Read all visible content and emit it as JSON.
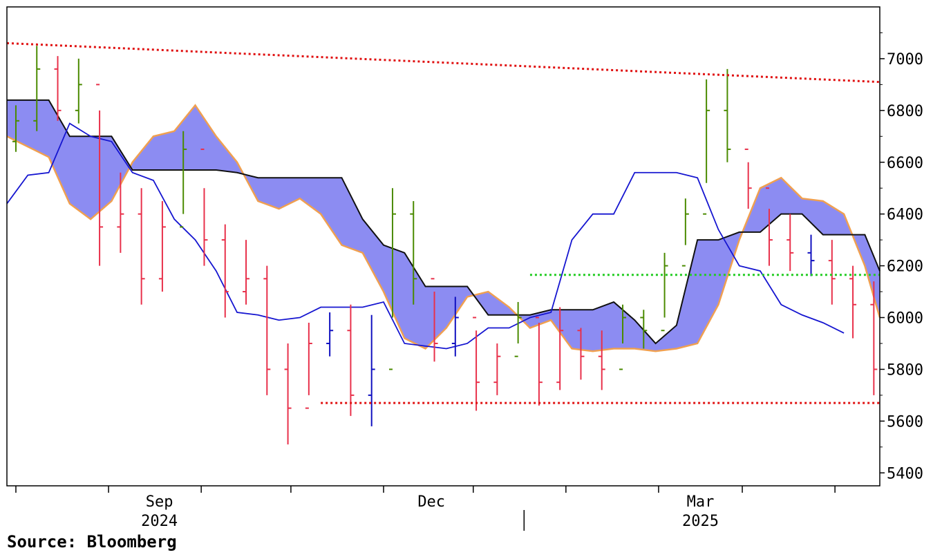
{
  "source": "Source: Bloomberg",
  "chart_data": {
    "type": "line",
    "subtype": "ohlc-bars with ichimoku cloud",
    "title": "",
    "xlabel": "",
    "ylabel": "",
    "ylim": [
      5350,
      7200
    ],
    "y_ticks": [
      5400,
      5600,
      5800,
      6000,
      6200,
      6400,
      6600,
      6800,
      7000
    ],
    "y_tick_labels": [
      "5400",
      "5600",
      "5800",
      "6000",
      "6200",
      "6400",
      "6600",
      "6800",
      "7000"
    ],
    "x_tick_labels": [
      {
        "label": "Sep",
        "x": "2024-09-01"
      },
      {
        "label": "Dec",
        "x": "2024-12-01"
      },
      {
        "label": "Mar",
        "x": "2025-03-01"
      }
    ],
    "x_year_labels": [
      {
        "label": "2024",
        "x": "2024-09-01"
      },
      {
        "label": "2025",
        "x": "2025-03-01"
      }
    ],
    "year_divider": "2025-01-01",
    "xlim": [
      "2024-07-12",
      "2025-04-30"
    ],
    "grid": false,
    "colors": {
      "up_bar": "#4a8a00",
      "down_bar": "#e8304a",
      "neutral_bar": "#1010c0",
      "cloud_fill": "#8c8cf2",
      "span_a": "#f0a050",
      "span_b": "#101010",
      "base_line": "#1515d0",
      "resistance": "#e01010",
      "support": "#e01010",
      "mid_level": "#22cc22"
    },
    "price_bars": [
      {
        "x": "2024-07-15",
        "o": 6680,
        "h": 6820,
        "l": 6640,
        "c": 6760,
        "d": "u"
      },
      {
        "x": "2024-07-22",
        "o": 6760,
        "h": 7050,
        "l": 6720,
        "c": 6960,
        "d": "u"
      },
      {
        "x": "2024-07-29",
        "o": 6960,
        "h": 7010,
        "l": 6760,
        "c": 6800,
        "d": "d"
      },
      {
        "x": "2024-08-05",
        "o": 6800,
        "h": 7000,
        "l": 6750,
        "c": 6900,
        "d": "u"
      },
      {
        "x": "2024-08-12",
        "o": 6900,
        "h": 6800,
        "l": 6200,
        "c": 6350,
        "d": "d"
      },
      {
        "x": "2024-08-19",
        "o": 6350,
        "h": 6560,
        "l": 6250,
        "c": 6400,
        "d": "d"
      },
      {
        "x": "2024-08-26",
        "o": 6400,
        "h": 6500,
        "l": 6050,
        "c": 6150,
        "d": "d"
      },
      {
        "x": "2024-09-02",
        "o": 6150,
        "h": 6450,
        "l": 6100,
        "c": 6350,
        "d": "d"
      },
      {
        "x": "2024-09-09",
        "o": 6350,
        "h": 6720,
        "l": 6400,
        "c": 6650,
        "d": "u"
      },
      {
        "x": "2024-09-16",
        "o": 6650,
        "h": 6500,
        "l": 6200,
        "c": 6300,
        "d": "d"
      },
      {
        "x": "2024-09-23",
        "o": 6300,
        "h": 6360,
        "l": 6000,
        "c": 6100,
        "d": "d"
      },
      {
        "x": "2024-09-30",
        "o": 6100,
        "h": 6300,
        "l": 6050,
        "c": 6150,
        "d": "d"
      },
      {
        "x": "2024-10-07",
        "o": 6150,
        "h": 6200,
        "l": 5700,
        "c": 5800,
        "d": "d"
      },
      {
        "x": "2024-10-14",
        "o": 5800,
        "h": 5900,
        "l": 5510,
        "c": 5650,
        "d": "d"
      },
      {
        "x": "2024-10-21",
        "o": 5650,
        "h": 5980,
        "l": 5700,
        "c": 5900,
        "d": "d"
      },
      {
        "x": "2024-10-28",
        "o": 5900,
        "h": 6020,
        "l": 5850,
        "c": 5950,
        "d": "n"
      },
      {
        "x": "2024-11-04",
        "o": 5950,
        "h": 6050,
        "l": 5620,
        "c": 5700,
        "d": "d"
      },
      {
        "x": "2024-11-11",
        "o": 5700,
        "h": 6010,
        "l": 5580,
        "c": 5800,
        "d": "n"
      },
      {
        "x": "2024-11-18",
        "o": 5800,
        "h": 6500,
        "l": 6000,
        "c": 6400,
        "d": "u"
      },
      {
        "x": "2024-11-25",
        "o": 6400,
        "h": 6450,
        "l": 6050,
        "c": 6150,
        "d": "u"
      },
      {
        "x": "2024-12-02",
        "o": 6150,
        "h": 6100,
        "l": 5830,
        "c": 5900,
        "d": "d"
      },
      {
        "x": "2024-12-09",
        "o": 5900,
        "h": 6080,
        "l": 5850,
        "c": 6000,
        "d": "n"
      },
      {
        "x": "2024-12-16",
        "o": 6000,
        "h": 5950,
        "l": 5640,
        "c": 5750,
        "d": "d"
      },
      {
        "x": "2024-12-23",
        "o": 5750,
        "h": 5900,
        "l": 5700,
        "c": 5850,
        "d": "d"
      },
      {
        "x": "2024-12-30",
        "o": 5850,
        "h": 6060,
        "l": 5900,
        "c": 6000,
        "d": "u"
      },
      {
        "x": "2025-01-06",
        "o": 6000,
        "h": 5980,
        "l": 5660,
        "c": 5750,
        "d": "d"
      },
      {
        "x": "2025-01-13",
        "o": 5750,
        "h": 6040,
        "l": 5720,
        "c": 5950,
        "d": "d"
      },
      {
        "x": "2025-01-20",
        "o": 5950,
        "h": 5960,
        "l": 5760,
        "c": 5850,
        "d": "d"
      },
      {
        "x": "2025-01-27",
        "o": 5850,
        "h": 5950,
        "l": 5720,
        "c": 5800,
        "d": "d"
      },
      {
        "x": "2025-02-03",
        "o": 5800,
        "h": 6050,
        "l": 5900,
        "c": 6000,
        "d": "u"
      },
      {
        "x": "2025-02-10",
        "o": 6000,
        "h": 6030,
        "l": 5880,
        "c": 5950,
        "d": "u"
      },
      {
        "x": "2025-02-17",
        "o": 5950,
        "h": 6250,
        "l": 6000,
        "c": 6200,
        "d": "u"
      },
      {
        "x": "2025-02-24",
        "o": 6200,
        "h": 6460,
        "l": 6280,
        "c": 6400,
        "d": "u"
      },
      {
        "x": "2025-03-03",
        "o": 6400,
        "h": 6920,
        "l": 6520,
        "c": 6800,
        "d": "u"
      },
      {
        "x": "2025-03-10",
        "o": 6800,
        "h": 6960,
        "l": 6600,
        "c": 6650,
        "d": "u"
      },
      {
        "x": "2025-03-17",
        "o": 6650,
        "h": 6600,
        "l": 6420,
        "c": 6500,
        "d": "d"
      },
      {
        "x": "2025-03-24",
        "o": 6500,
        "h": 6420,
        "l": 6200,
        "c": 6300,
        "d": "d"
      },
      {
        "x": "2025-03-31",
        "o": 6300,
        "h": 6400,
        "l": 6180,
        "c": 6250,
        "d": "d"
      },
      {
        "x": "2025-04-07",
        "o": 6250,
        "h": 6320,
        "l": 6160,
        "c": 6220,
        "d": "n"
      },
      {
        "x": "2025-04-14",
        "o": 6220,
        "h": 6300,
        "l": 6050,
        "c": 6150,
        "d": "d"
      },
      {
        "x": "2025-04-21",
        "o": 6150,
        "h": 6200,
        "l": 5920,
        "c": 6050,
        "d": "d"
      },
      {
        "x": "2025-04-28",
        "o": 6050,
        "h": 6140,
        "l": 5700,
        "c": 5800,
        "d": "d"
      }
    ],
    "span_a": [
      {
        "x": "2024-07-12",
        "y": 6700
      },
      {
        "x": "2024-07-26",
        "y": 6620
      },
      {
        "x": "2024-08-02",
        "y": 6440
      },
      {
        "x": "2024-08-09",
        "y": 6380
      },
      {
        "x": "2024-08-16",
        "y": 6450
      },
      {
        "x": "2024-08-23",
        "y": 6600
      },
      {
        "x": "2024-08-30",
        "y": 6700
      },
      {
        "x": "2024-09-06",
        "y": 6720
      },
      {
        "x": "2024-09-13",
        "y": 6820
      },
      {
        "x": "2024-09-20",
        "y": 6700
      },
      {
        "x": "2024-09-27",
        "y": 6600
      },
      {
        "x": "2024-10-04",
        "y": 6450
      },
      {
        "x": "2024-10-11",
        "y": 6420
      },
      {
        "x": "2024-10-18",
        "y": 6460
      },
      {
        "x": "2024-10-25",
        "y": 6400
      },
      {
        "x": "2024-11-01",
        "y": 6280
      },
      {
        "x": "2024-11-08",
        "y": 6250
      },
      {
        "x": "2024-11-15",
        "y": 6100
      },
      {
        "x": "2024-11-22",
        "y": 5920
      },
      {
        "x": "2024-11-29",
        "y": 5880
      },
      {
        "x": "2024-12-06",
        "y": 5960
      },
      {
        "x": "2024-12-13",
        "y": 6080
      },
      {
        "x": "2024-12-20",
        "y": 6100
      },
      {
        "x": "2024-12-27",
        "y": 6040
      },
      {
        "x": "2025-01-03",
        "y": 5960
      },
      {
        "x": "2025-01-10",
        "y": 5990
      },
      {
        "x": "2025-01-17",
        "y": 5880
      },
      {
        "x": "2025-01-24",
        "y": 5870
      },
      {
        "x": "2025-01-31",
        "y": 5880
      },
      {
        "x": "2025-02-07",
        "y": 5880
      },
      {
        "x": "2025-02-14",
        "y": 5870
      },
      {
        "x": "2025-02-21",
        "y": 5880
      },
      {
        "x": "2025-02-28",
        "y": 5900
      },
      {
        "x": "2025-03-07",
        "y": 6050
      },
      {
        "x": "2025-03-14",
        "y": 6300
      },
      {
        "x": "2025-03-21",
        "y": 6500
      },
      {
        "x": "2025-03-28",
        "y": 6540
      },
      {
        "x": "2025-04-04",
        "y": 6460
      },
      {
        "x": "2025-04-11",
        "y": 6450
      },
      {
        "x": "2025-04-18",
        "y": 6400
      },
      {
        "x": "2025-04-25",
        "y": 6200
      },
      {
        "x": "2025-04-30",
        "y": 6000
      }
    ],
    "span_b": [
      {
        "x": "2024-07-12",
        "y": 6840
      },
      {
        "x": "2024-07-26",
        "y": 6840
      },
      {
        "x": "2024-08-02",
        "y": 6700
      },
      {
        "x": "2024-08-09",
        "y": 6700
      },
      {
        "x": "2024-08-16",
        "y": 6700
      },
      {
        "x": "2024-08-23",
        "y": 6570
      },
      {
        "x": "2024-08-30",
        "y": 6570
      },
      {
        "x": "2024-09-06",
        "y": 6570
      },
      {
        "x": "2024-09-13",
        "y": 6570
      },
      {
        "x": "2024-09-20",
        "y": 6570
      },
      {
        "x": "2024-09-27",
        "y": 6560
      },
      {
        "x": "2024-10-04",
        "y": 6540
      },
      {
        "x": "2024-10-11",
        "y": 6540
      },
      {
        "x": "2024-10-18",
        "y": 6540
      },
      {
        "x": "2024-10-25",
        "y": 6540
      },
      {
        "x": "2024-11-01",
        "y": 6540
      },
      {
        "x": "2024-11-08",
        "y": 6380
      },
      {
        "x": "2024-11-15",
        "y": 6280
      },
      {
        "x": "2024-11-22",
        "y": 6250
      },
      {
        "x": "2024-11-29",
        "y": 6120
      },
      {
        "x": "2024-12-06",
        "y": 6120
      },
      {
        "x": "2024-12-13",
        "y": 6120
      },
      {
        "x": "2024-12-20",
        "y": 6010
      },
      {
        "x": "2024-12-27",
        "y": 6010
      },
      {
        "x": "2025-01-03",
        "y": 6010
      },
      {
        "x": "2025-01-10",
        "y": 6030
      },
      {
        "x": "2025-01-17",
        "y": 6030
      },
      {
        "x": "2025-01-24",
        "y": 6030
      },
      {
        "x": "2025-01-31",
        "y": 6060
      },
      {
        "x": "2025-02-07",
        "y": 5990
      },
      {
        "x": "2025-02-14",
        "y": 5900
      },
      {
        "x": "2025-02-21",
        "y": 5970
      },
      {
        "x": "2025-02-28",
        "y": 6300
      },
      {
        "x": "2025-03-07",
        "y": 6300
      },
      {
        "x": "2025-03-14",
        "y": 6330
      },
      {
        "x": "2025-03-21",
        "y": 6330
      },
      {
        "x": "2025-03-28",
        "y": 6400
      },
      {
        "x": "2025-04-04",
        "y": 6400
      },
      {
        "x": "2025-04-11",
        "y": 6320
      },
      {
        "x": "2025-04-18",
        "y": 6320
      },
      {
        "x": "2025-04-25",
        "y": 6320
      },
      {
        "x": "2025-04-30",
        "y": 6180
      }
    ],
    "base_line": [
      {
        "x": "2024-07-12",
        "y": 6440
      },
      {
        "x": "2024-07-19",
        "y": 6550
      },
      {
        "x": "2024-07-26",
        "y": 6560
      },
      {
        "x": "2024-08-02",
        "y": 6750
      },
      {
        "x": "2024-08-09",
        "y": 6700
      },
      {
        "x": "2024-08-16",
        "y": 6680
      },
      {
        "x": "2024-08-23",
        "y": 6560
      },
      {
        "x": "2024-08-30",
        "y": 6530
      },
      {
        "x": "2024-09-06",
        "y": 6380
      },
      {
        "x": "2024-09-13",
        "y": 6300
      },
      {
        "x": "2024-09-20",
        "y": 6180
      },
      {
        "x": "2024-09-27",
        "y": 6020
      },
      {
        "x": "2024-10-04",
        "y": 6010
      },
      {
        "x": "2024-10-11",
        "y": 5990
      },
      {
        "x": "2024-10-18",
        "y": 6000
      },
      {
        "x": "2024-10-25",
        "y": 6040
      },
      {
        "x": "2024-11-01",
        "y": 6040
      },
      {
        "x": "2024-11-08",
        "y": 6040
      },
      {
        "x": "2024-11-15",
        "y": 6060
      },
      {
        "x": "2024-11-22",
        "y": 5900
      },
      {
        "x": "2024-11-29",
        "y": 5890
      },
      {
        "x": "2024-12-06",
        "y": 5880
      },
      {
        "x": "2024-12-13",
        "y": 5900
      },
      {
        "x": "2024-12-20",
        "y": 5960
      },
      {
        "x": "2024-12-27",
        "y": 5960
      },
      {
        "x": "2025-01-03",
        "y": 6000
      },
      {
        "x": "2025-01-10",
        "y": 6020
      },
      {
        "x": "2025-01-17",
        "y": 6300
      },
      {
        "x": "2025-01-24",
        "y": 6400
      },
      {
        "x": "2025-01-31",
        "y": 6400
      },
      {
        "x": "2025-02-07",
        "y": 6560
      },
      {
        "x": "2025-02-14",
        "y": 6560
      },
      {
        "x": "2025-02-21",
        "y": 6560
      },
      {
        "x": "2025-02-28",
        "y": 6540
      },
      {
        "x": "2025-03-07",
        "y": 6340
      },
      {
        "x": "2025-03-14",
        "y": 6200
      },
      {
        "x": "2025-03-21",
        "y": 6180
      },
      {
        "x": "2025-03-28",
        "y": 6050
      },
      {
        "x": "2025-04-04",
        "y": 6010
      },
      {
        "x": "2025-04-11",
        "y": 5980
      },
      {
        "x": "2025-04-18",
        "y": 5940
      }
    ],
    "resistance_line": [
      {
        "x": "2024-07-12",
        "y": 7060
      },
      {
        "x": "2025-04-30",
        "y": 6910
      }
    ],
    "support_line": [
      {
        "x": "2024-10-25",
        "y": 5670
      },
      {
        "x": "2025-04-30",
        "y": 5670
      }
    ],
    "mid_level_line": [
      {
        "x": "2025-01-03",
        "y": 6165
      },
      {
        "x": "2025-04-30",
        "y": 6165
      }
    ]
  }
}
